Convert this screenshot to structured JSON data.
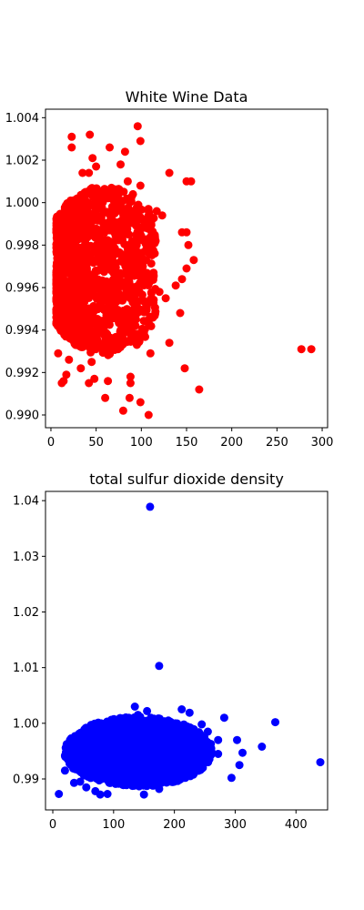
{
  "chart_data": [
    {
      "type": "scatter",
      "title": "White Wine Data",
      "xlabel": "",
      "ylabel": "",
      "xlim": [
        -6,
        306
      ],
      "ylim": [
        0.9894,
        1.0044
      ],
      "xticks": [
        0,
        50,
        100,
        150,
        200,
        250,
        300
      ],
      "yticks": [
        0.99,
        0.992,
        0.994,
        0.996,
        0.998,
        1.0,
        1.002,
        1.004
      ],
      "xtick_labels": [
        "0",
        "50",
        "100",
        "150",
        "200",
        "250",
        "300"
      ],
      "ytick_labels": [
        "0.990",
        "0.992",
        "0.994",
        "0.996",
        "0.998",
        "1.000",
        "1.002",
        "1.004"
      ],
      "color": "#ff0000",
      "series": [
        {
          "values": [
            {
              "x": 23,
              "y": 1.0031
            },
            {
              "x": 23,
              "y": 1.0026
            },
            {
              "x": 43,
              "y": 1.0032
            },
            {
              "x": 46,
              "y": 1.0021
            },
            {
              "x": 65,
              "y": 1.0026
            },
            {
              "x": 96,
              "y": 1.0036
            },
            {
              "x": 99,
              "y": 1.0029
            },
            {
              "x": 82,
              "y": 1.0024
            },
            {
              "x": 77,
              "y": 1.0018
            },
            {
              "x": 131,
              "y": 1.0014
            },
            {
              "x": 150,
              "y": 1.001
            },
            {
              "x": 155,
              "y": 1.001
            },
            {
              "x": 85,
              "y": 1.001
            },
            {
              "x": 99,
              "y": 1.0008
            },
            {
              "x": 35,
              "y": 1.0014
            },
            {
              "x": 42,
              "y": 1.0014
            },
            {
              "x": 50,
              "y": 1.0017
            },
            {
              "x": 48,
              "y": 1.0006
            },
            {
              "x": 108,
              "y": 0.9996
            },
            {
              "x": 117,
              "y": 0.9996
            },
            {
              "x": 123,
              "y": 0.9994
            },
            {
              "x": 145,
              "y": 0.9986
            },
            {
              "x": 150,
              "y": 0.9986
            },
            {
              "x": 152,
              "y": 0.998
            },
            {
              "x": 158,
              "y": 0.9973
            },
            {
              "x": 150,
              "y": 0.9969
            },
            {
              "x": 145,
              "y": 0.9964
            },
            {
              "x": 138,
              "y": 0.9961
            },
            {
              "x": 120,
              "y": 0.9958
            },
            {
              "x": 127,
              "y": 0.9955
            },
            {
              "x": 143,
              "y": 0.9948
            },
            {
              "x": 131,
              "y": 0.9934
            },
            {
              "x": 110,
              "y": 0.9929
            },
            {
              "x": 88,
              "y": 0.9918
            },
            {
              "x": 88,
              "y": 0.9915
            },
            {
              "x": 87,
              "y": 0.9908
            },
            {
              "x": 99,
              "y": 0.9906
            },
            {
              "x": 80,
              "y": 0.9902
            },
            {
              "x": 108,
              "y": 0.99
            },
            {
              "x": 148,
              "y": 0.9922
            },
            {
              "x": 164,
              "y": 0.9912
            },
            {
              "x": 277,
              "y": 0.9931
            },
            {
              "x": 288,
              "y": 0.9931
            },
            {
              "x": 60,
              "y": 0.9908
            },
            {
              "x": 63,
              "y": 0.9916
            },
            {
              "x": 48,
              "y": 0.9917
            },
            {
              "x": 45,
              "y": 0.9925
            },
            {
              "x": 33,
              "y": 0.9922
            },
            {
              "x": 17,
              "y": 0.9919
            },
            {
              "x": 12,
              "y": 0.9915
            },
            {
              "x": 8,
              "y": 0.9929
            },
            {
              "x": 14,
              "y": 0.9916
            },
            {
              "x": 20,
              "y": 0.9926
            },
            {
              "x": 42,
              "y": 0.9915
            },
            {
              "x": 55,
              "y": 0.9932
            },
            {
              "x": 65,
              "y": 0.9929
            },
            {
              "x": 95,
              "y": 0.9933
            },
            {
              "x": 100,
              "y": 0.9937
            },
            {
              "x": 94,
              "y": 0.9945
            },
            {
              "x": 85,
              "y": 0.9939
            }
          ]
        }
      ],
      "cluster": {
        "x_range": [
          6,
          116
        ],
        "y_range": [
          0.9928,
          1.0008
        ]
      }
    },
    {
      "type": "scatter",
      "title": "total sulfur dioxide density",
      "xlabel": "",
      "ylabel": "",
      "xlim": [
        -12,
        452
      ],
      "ylim": [
        0.98444,
        1.04166
      ],
      "xticks": [
        0,
        100,
        200,
        300,
        400
      ],
      "yticks": [
        0.99,
        1.0,
        1.01,
        1.02,
        1.03,
        1.04
      ],
      "xtick_labels": [
        "0",
        "100",
        "200",
        "300",
        "400"
      ],
      "ytick_labels": [
        "0.99",
        "1.00",
        "1.01",
        "1.02",
        "1.03",
        "1.04"
      ],
      "color": "#0000ff",
      "series": [
        {
          "values": [
            {
              "x": 160,
              "y": 1.0389
            },
            {
              "x": 175,
              "y": 1.0103
            },
            {
              "x": 440,
              "y": 0.993
            },
            {
              "x": 366,
              "y": 1.0002
            },
            {
              "x": 344,
              "y": 0.9958
            },
            {
              "x": 312,
              "y": 0.9947
            },
            {
              "x": 307,
              "y": 0.9925
            },
            {
              "x": 303,
              "y": 0.997
            },
            {
              "x": 294,
              "y": 0.9902
            },
            {
              "x": 282,
              "y": 1.001
            },
            {
              "x": 272,
              "y": 0.997
            },
            {
              "x": 272,
              "y": 0.9945
            },
            {
              "x": 255,
              "y": 0.9985
            },
            {
              "x": 245,
              "y": 0.9998
            },
            {
              "x": 212,
              "y": 1.0025
            },
            {
              "x": 225,
              "y": 1.0019
            },
            {
              "x": 135,
              "y": 1.003
            },
            {
              "x": 155,
              "y": 1.0022
            },
            {
              "x": 10,
              "y": 0.9873
            },
            {
              "x": 20,
              "y": 0.9915
            },
            {
              "x": 25,
              "y": 0.9935
            },
            {
              "x": 30,
              "y": 0.9925
            },
            {
              "x": 40,
              "y": 0.9945
            },
            {
              "x": 45,
              "y": 0.9895
            },
            {
              "x": 55,
              "y": 0.9885
            },
            {
              "x": 70,
              "y": 0.9878
            },
            {
              "x": 78,
              "y": 0.9872
            },
            {
              "x": 90,
              "y": 0.9873
            },
            {
              "x": 150,
              "y": 0.9872
            },
            {
              "x": 175,
              "y": 0.9882
            },
            {
              "x": 200,
              "y": 0.9895
            },
            {
              "x": 230,
              "y": 0.9915
            },
            {
              "x": 255,
              "y": 0.993
            },
            {
              "x": 260,
              "y": 0.9963
            },
            {
              "x": 100,
              "y": 0.9992
            },
            {
              "x": 190,
              "y": 1.0005
            },
            {
              "x": 120,
              "y": 1.0005
            },
            {
              "x": 140,
              "y": 1.0015
            },
            {
              "x": 60,
              "y": 0.9962
            },
            {
              "x": 35,
              "y": 0.9893
            }
          ]
        }
      ],
      "cluster": {
        "x_range": [
          18,
          262
        ],
        "y_range": [
          0.9873,
          1.0025
        ]
      }
    }
  ]
}
